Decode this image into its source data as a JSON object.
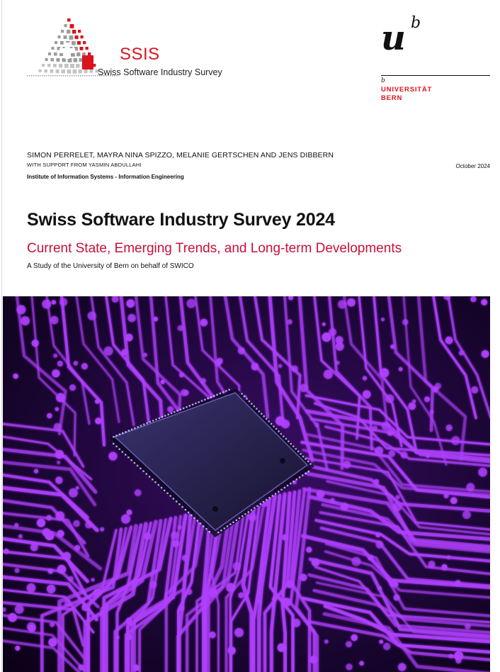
{
  "logo": {
    "ssis_wordmark": "SSIS",
    "ssis_subtitle": "Swiss Software Industry Survey",
    "unibe_u": "u",
    "unibe_b": "b",
    "unibe_b_small": "b",
    "unibe_name_line1": "UNIVERSITÄT",
    "unibe_name_line2": "BERN"
  },
  "meta": {
    "authors": "SIMON PERRELET, MAYRA NINA SPIZZO, MELANIE GERTSCHEN AND JENS DIBBERN",
    "support": "WITH SUPPORT FROM YASMIN ABDULLAHI",
    "date": "October 2024",
    "institute": "Institute of Information Systems - Information Engineering"
  },
  "title": {
    "main": "Swiss Software Industry Survey 2024",
    "subtitle": "Current State, Emerging Trends, and Long-term Developments",
    "study": "A Study of the University of Bern on behalf of SWICO"
  },
  "colors": {
    "accent_red": "#d9141e",
    "subtitle_crimson": "#c8103a",
    "circuit_purple": "#b040ff",
    "chip_dark": "#2a2350"
  },
  "icons": {
    "ssis_logo": "ssis-mosaic-triangle-logo",
    "unibe_logo": "university-of-bern-logo",
    "cover": "circuit-board-chip-photo"
  }
}
